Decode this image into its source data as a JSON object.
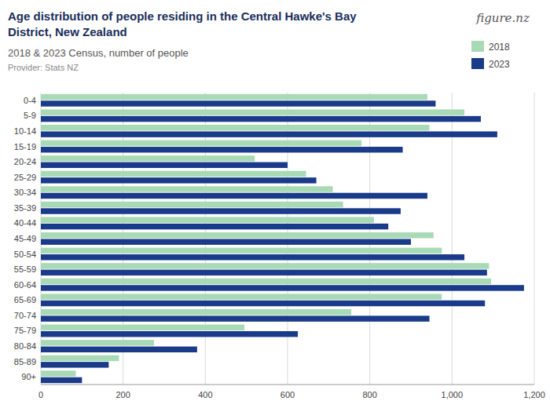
{
  "chart_data": {
    "type": "bar",
    "orientation": "horizontal",
    "title": "Age distribution of people residing in the Central Hawke's Bay\nDistrict, New Zealand",
    "subtitle": "2018 & 2023 Census, number of people",
    "annotations": [
      "Provider: Stats NZ",
      "figure.nz"
    ],
    "categories": [
      "0-4",
      "5-9",
      "10-14",
      "15-19",
      "20-24",
      "25-29",
      "30-34",
      "35-39",
      "40-44",
      "45-49",
      "50-54",
      "55-59",
      "60-64",
      "65-69",
      "70-74",
      "75-79",
      "80-84",
      "85-89",
      "90+"
    ],
    "series": [
      {
        "name": "2018",
        "color": "#a8dab5",
        "values": [
          940,
          1030,
          945,
          780,
          520,
          645,
          710,
          735,
          810,
          955,
          975,
          1090,
          1095,
          975,
          755,
          495,
          275,
          190,
          85
        ]
      },
      {
        "name": "2023",
        "color": "#1a3a8a",
        "values": [
          960,
          1070,
          1110,
          880,
          600,
          670,
          940,
          875,
          845,
          900,
          1030,
          1085,
          1175,
          1080,
          945,
          625,
          380,
          165,
          100
        ]
      }
    ],
    "xlim": [
      0,
      1200
    ],
    "xticks": [
      0,
      200,
      400,
      600,
      800,
      {
        "value": 1000,
        "label": "1,000"
      },
      {
        "value": 1200,
        "label": "1,200"
      }
    ],
    "grid": true,
    "legend": "upper right"
  }
}
